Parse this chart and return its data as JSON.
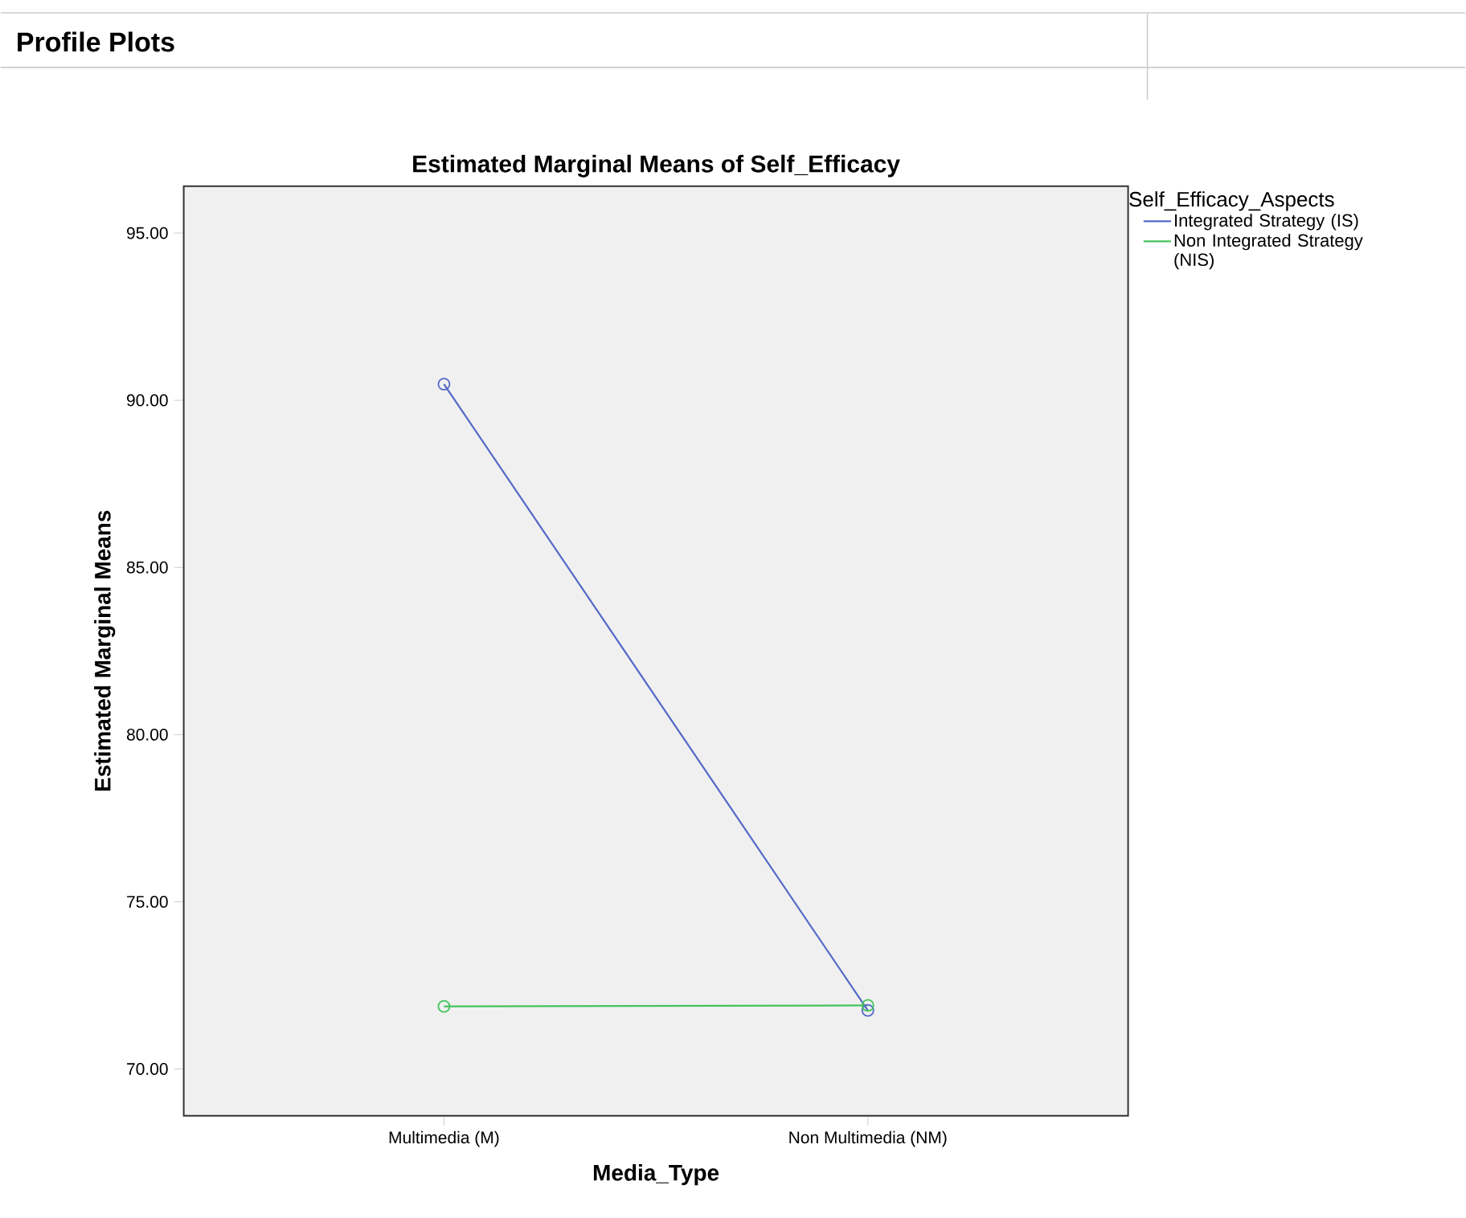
{
  "chart_data": {
    "type": "line",
    "title": "Estimated Marginal Means of Self_Efficacy",
    "annotations": [
      "Profile Plots"
    ],
    "xlabel": "Media_Type",
    "ylabel": "Estimated Marginal Means",
    "legend_title": "Self_Efficacy_Aspects",
    "categories": [
      "Multimedia (M)",
      "Non Multimedia (NM)"
    ],
    "series": [
      {
        "name": "Integrated Strategy (IS)",
        "color": "#5468c8",
        "values": [
          90.48,
          71.75
        ]
      },
      {
        "name": "Non Integrated Strategy (NIS)",
        "color": "#45c45c",
        "values": [
          71.87,
          71.9
        ]
      }
    ],
    "ylim": [
      68.6,
      96.4
    ],
    "yticks": [
      {
        "value": 70,
        "label": "70.00"
      },
      {
        "value": 75,
        "label": "75.00"
      },
      {
        "value": 80,
        "label": "80.00"
      },
      {
        "value": 85,
        "label": "85.00"
      },
      {
        "value": 90,
        "label": "90.00"
      },
      {
        "value": 95,
        "label": "95.00"
      }
    ],
    "marker": "circle",
    "line_style": "solid",
    "legend": "top right",
    "grid": false
  }
}
